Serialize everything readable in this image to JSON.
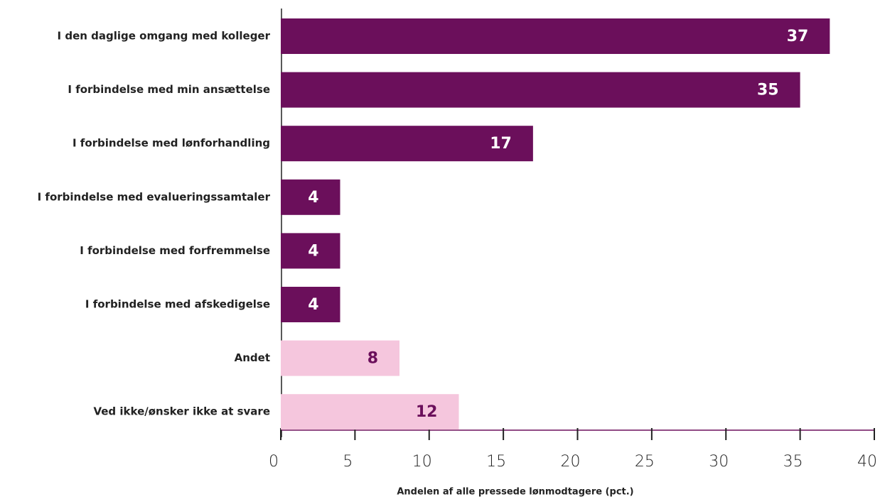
{
  "chart_data": {
    "type": "bar",
    "orientation": "horizontal",
    "x_label": "Andelen af alle pressede lønmodtagere  (pct.)",
    "categories": [
      "I den daglige omgang med kolleger",
      "I forbindelse med min ansættelse",
      "I forbindelse med lønforhandling",
      "I forbindelse med evalueringssamtaler",
      "I forbindelse med forfremmelse",
      "I forbindelse med afskedigelse",
      "Andet",
      "Ved ikke/ønsker ikke at svare"
    ],
    "values": [
      37,
      35,
      17,
      4,
      4,
      4,
      8,
      12
    ],
    "colors": [
      "#6b0f5b",
      "#6b0f5b",
      "#6b0f5b",
      "#6b0f5b",
      "#6b0f5b",
      "#6b0f5b",
      "#f5c6dd",
      "#f5c6dd"
    ],
    "value_label_colors": [
      "#ffffff",
      "#ffffff",
      "#ffffff",
      "#ffffff",
      "#ffffff",
      "#ffffff",
      "#6b0f5b",
      "#6b0f5b"
    ],
    "xlim": [
      0,
      40
    ],
    "xticks": [
      0,
      5,
      10,
      15,
      20,
      25,
      30,
      35,
      40
    ]
  }
}
